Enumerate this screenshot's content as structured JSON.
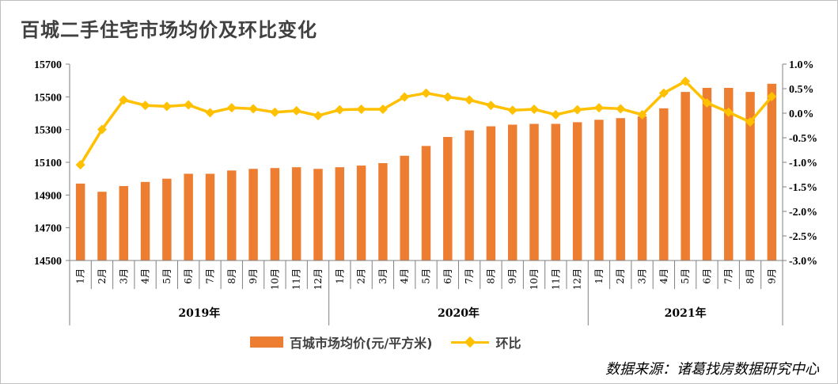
{
  "title": "百城二手住宅市场均价及环比变化",
  "source": "数据来源：诸葛找房数据研究中心",
  "legend": {
    "bar": "百城市场均价(元/平方米)",
    "line": "环比"
  },
  "colors": {
    "bar": "#ED7D31",
    "line": "#FFC000"
  },
  "chart_data": {
    "type": "bar+line",
    "title": "百城二手住宅市场均价及环比变化",
    "categories": [
      "1月",
      "2月",
      "3月",
      "4月",
      "5月",
      "6月",
      "7月",
      "8月",
      "9月",
      "10月",
      "11月",
      "12月",
      "1月",
      "2月",
      "3月",
      "4月",
      "5月",
      "6月",
      "7月",
      "8月",
      "9月",
      "10月",
      "11月",
      "12月",
      "1月",
      "2月",
      "3月",
      "4月",
      "5月",
      "6月",
      "7月",
      "8月",
      "9月"
    ],
    "groups": [
      {
        "label": "2019年",
        "count": 12
      },
      {
        "label": "2020年",
        "count": 12
      },
      {
        "label": "2021年",
        "count": 9
      }
    ],
    "series": [
      {
        "name": "百城市场均价(元/平方米)",
        "type": "bar",
        "axis": "left",
        "values": [
          14970,
          14920,
          14955,
          14980,
          15000,
          15030,
          15030,
          15050,
          15060,
          15065,
          15070,
          15060,
          15070,
          15080,
          15095,
          15140,
          15200,
          15255,
          15295,
          15320,
          15330,
          15335,
          15335,
          15345,
          15360,
          15370,
          15380,
          15430,
          15530,
          15555,
          15555,
          15530,
          15580
        ]
      },
      {
        "name": "环比",
        "type": "line",
        "axis": "right",
        "unit": "%",
        "values": [
          -1.05,
          -0.33,
          0.27,
          0.16,
          0.14,
          0.17,
          0.01,
          0.11,
          0.09,
          0.02,
          0.05,
          -0.05,
          0.07,
          0.08,
          0.08,
          0.33,
          0.41,
          0.33,
          0.27,
          0.16,
          0.06,
          0.08,
          -0.03,
          0.07,
          0.11,
          0.09,
          -0.03,
          0.41,
          0.65,
          0.21,
          0.02,
          -0.18,
          0.34
        ]
      }
    ],
    "y_left": {
      "min": 14500,
      "max": 15700,
      "ticks": [
        14500,
        14700,
        14900,
        15100,
        15300,
        15500,
        15700
      ]
    },
    "y_right": {
      "min": -3.0,
      "max": 1.0,
      "ticks": [
        "1.0%",
        "0.5%",
        "0.0%",
        "-0.5%",
        "-1.0%",
        "-1.5%",
        "-2.0%",
        "-2.5%",
        "-3.0%"
      ]
    },
    "grid": false,
    "legend_position": "bottom"
  }
}
